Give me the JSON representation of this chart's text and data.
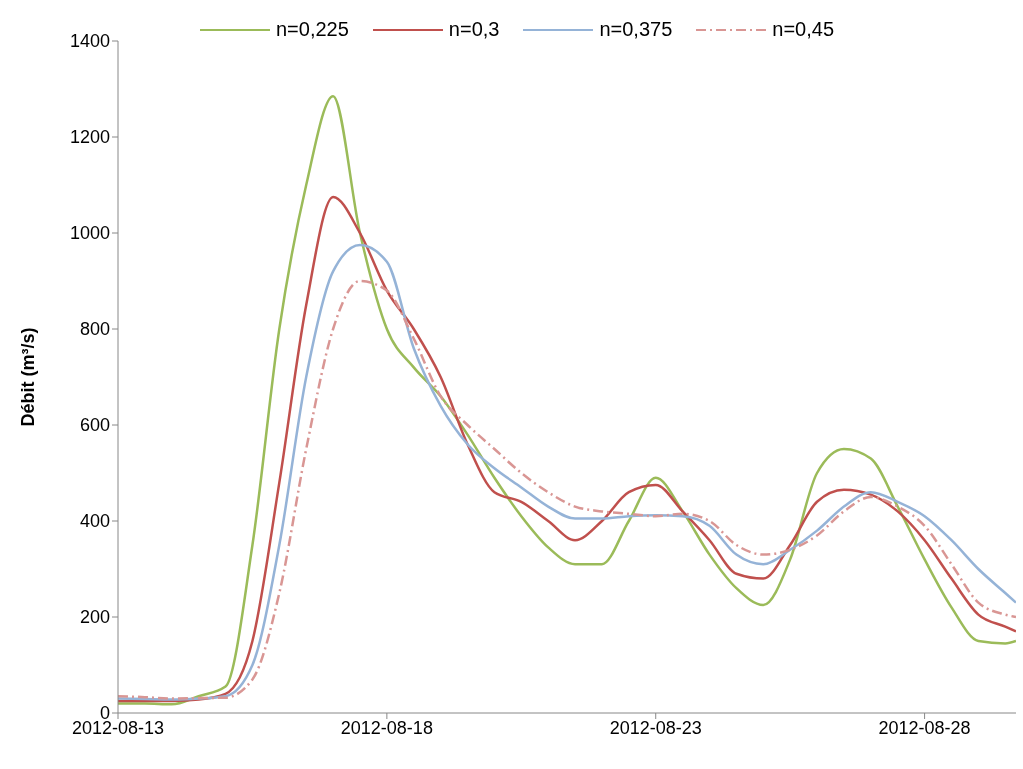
{
  "chart_data": {
    "type": "line",
    "ylabel": "Débit (m³/s)",
    "x": [
      "2012-08-13T00:00",
      "2012-08-13T12:00",
      "2012-08-14T00:00",
      "2012-08-14T12:00",
      "2012-08-15T00:00",
      "2012-08-15T12:00",
      "2012-08-16T00:00",
      "2012-08-16T12:00",
      "2012-08-17T00:00",
      "2012-08-17T12:00",
      "2012-08-18T00:00",
      "2012-08-18T12:00",
      "2012-08-19T00:00",
      "2012-08-19T12:00",
      "2012-08-20T00:00",
      "2012-08-20T12:00",
      "2012-08-21T00:00",
      "2012-08-21T12:00",
      "2012-08-22T00:00",
      "2012-08-22T12:00",
      "2012-08-23T00:00",
      "2012-08-23T12:00",
      "2012-08-24T00:00",
      "2012-08-24T12:00",
      "2012-08-25T00:00",
      "2012-08-25T12:00",
      "2012-08-26T00:00",
      "2012-08-26T12:00",
      "2012-08-27T00:00",
      "2012-08-27T12:00",
      "2012-08-28T00:00",
      "2012-08-28T12:00",
      "2012-08-29T00:00",
      "2012-08-29T12:00",
      "2012-08-29T16:48"
    ],
    "series": [
      {
        "name": "n=0,225",
        "color": "#9bbb59",
        "line_style": "solid",
        "values": [
          20,
          20,
          18,
          35,
          55,
          350,
          800,
          1100,
          1285,
          1000,
          800,
          720,
          660,
          580,
          490,
          410,
          345,
          310,
          310,
          400,
          490,
          420,
          330,
          260,
          225,
          320,
          500,
          550,
          530,
          430,
          320,
          220,
          150,
          145,
          150
        ]
      },
      {
        "name": "n=0,3",
        "color": "#c0504d",
        "line_style": "solid",
        "values": [
          25,
          25,
          25,
          28,
          40,
          150,
          480,
          850,
          1075,
          1000,
          880,
          800,
          700,
          560,
          460,
          440,
          400,
          360,
          400,
          460,
          475,
          420,
          360,
          290,
          280,
          350,
          440,
          465,
          455,
          420,
          360,
          280,
          205,
          180,
          170
        ]
      },
      {
        "name": "n=0,375",
        "color": "#95b3d7",
        "line_style": "solid",
        "values": [
          30,
          29,
          28,
          30,
          35,
          100,
          350,
          700,
          920,
          975,
          940,
          760,
          640,
          560,
          510,
          470,
          430,
          405,
          405,
          410,
          412,
          410,
          390,
          330,
          310,
          340,
          380,
          430,
          460,
          440,
          410,
          360,
          300,
          250,
          230
        ]
      },
      {
        "name": "n=0,45",
        "color": "#d99694",
        "line_style": "dashed",
        "values": [
          35,
          33,
          30,
          31,
          32,
          70,
          250,
          550,
          800,
          900,
          880,
          780,
          660,
          600,
          550,
          500,
          460,
          430,
          420,
          415,
          410,
          415,
          400,
          350,
          330,
          340,
          370,
          420,
          450,
          430,
          390,
          310,
          230,
          205,
          200
        ]
      }
    ],
    "xlim": [
      "2012-08-13",
      "2012-08-29T16:48"
    ],
    "xticks": [
      "2012-08-13",
      "2012-08-18",
      "2012-08-23",
      "2012-08-28"
    ],
    "ylim": [
      0,
      1400
    ],
    "yticks": [
      0,
      200,
      400,
      600,
      800,
      1000,
      1200,
      1400
    ],
    "grid": false,
    "legend": "top",
    "marker": "none"
  }
}
